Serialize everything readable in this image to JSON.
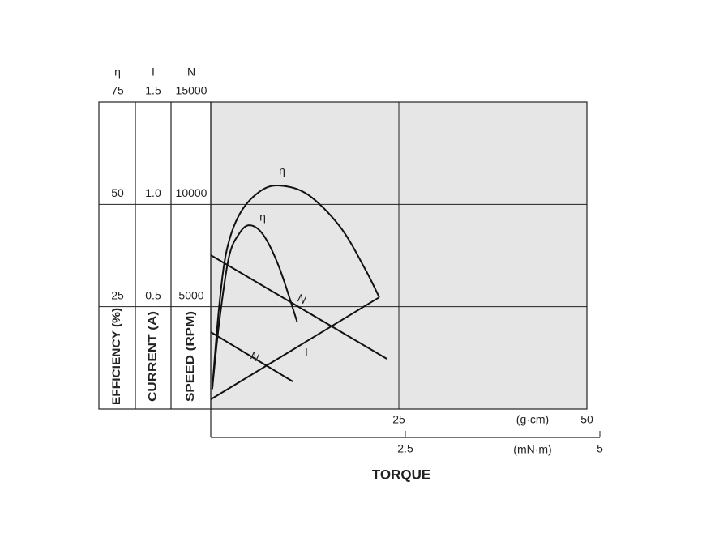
{
  "chart_data": {
    "type": "line",
    "x_label": "TORQUE",
    "xunit": "(g·cm)",
    "xlim": [
      0,
      50
    ],
    "xticks": [
      25,
      50
    ],
    "x2unit": "(mN·m)",
    "x2lim": [
      0,
      5
    ],
    "x2ticks": [
      2.5,
      5
    ],
    "y_axes": [
      {
        "symbol": "η",
        "label": "EFFICIENCY (%)",
        "lim": [
          0,
          75
        ],
        "ticks": [
          25,
          50,
          75
        ]
      },
      {
        "symbol": "I",
        "label": "CURRENT (A)",
        "lim": [
          0,
          1.5
        ],
        "ticks": [
          0.5,
          {
            "value": 1,
            "label": "1.0"
          },
          1.5
        ]
      },
      {
        "symbol": "N",
        "label": "SPEED (RPM)",
        "lim": [
          0,
          15000
        ],
        "ticks": [
          5000,
          10000,
          15000
        ]
      }
    ],
    "grid": true,
    "series": [
      {
        "name": "η",
        "color": "#111111",
        "axis": 0,
        "x": [
          0.2,
          1.1,
          2.1,
          3.8,
          6.4,
          9.1,
          12.9,
          17.2,
          20.4,
          22.4
        ],
        "values": [
          4.9,
          24.7,
          38.6,
          47.5,
          53.0,
          54.6,
          52.4,
          44.5,
          34.6,
          27.3
        ]
      },
      {
        "name": "η",
        "color": "#111111",
        "axis": 0,
        "x": [
          0.2,
          1.1,
          2.4,
          3.8,
          5.2,
          7.0,
          9.1,
          11.5
        ],
        "values": [
          4.9,
          20.8,
          37.0,
          42.9,
          44.9,
          42.5,
          34.6,
          21.2
        ]
      },
      {
        "name": "N",
        "color": "#111111",
        "axis": 2,
        "x": [
          0,
          23.4
        ],
        "values": [
          7520,
          2454
        ]
      },
      {
        "name": "N",
        "color": "#111111",
        "axis": 2,
        "x": [
          0,
          10.9
        ],
        "values": [
          3760,
          1345
        ]
      },
      {
        "name": "I",
        "color": "#111111",
        "axis": 1,
        "x": [
          0,
          22.4
        ],
        "values": [
          0.047,
          0.546
        ]
      }
    ]
  }
}
